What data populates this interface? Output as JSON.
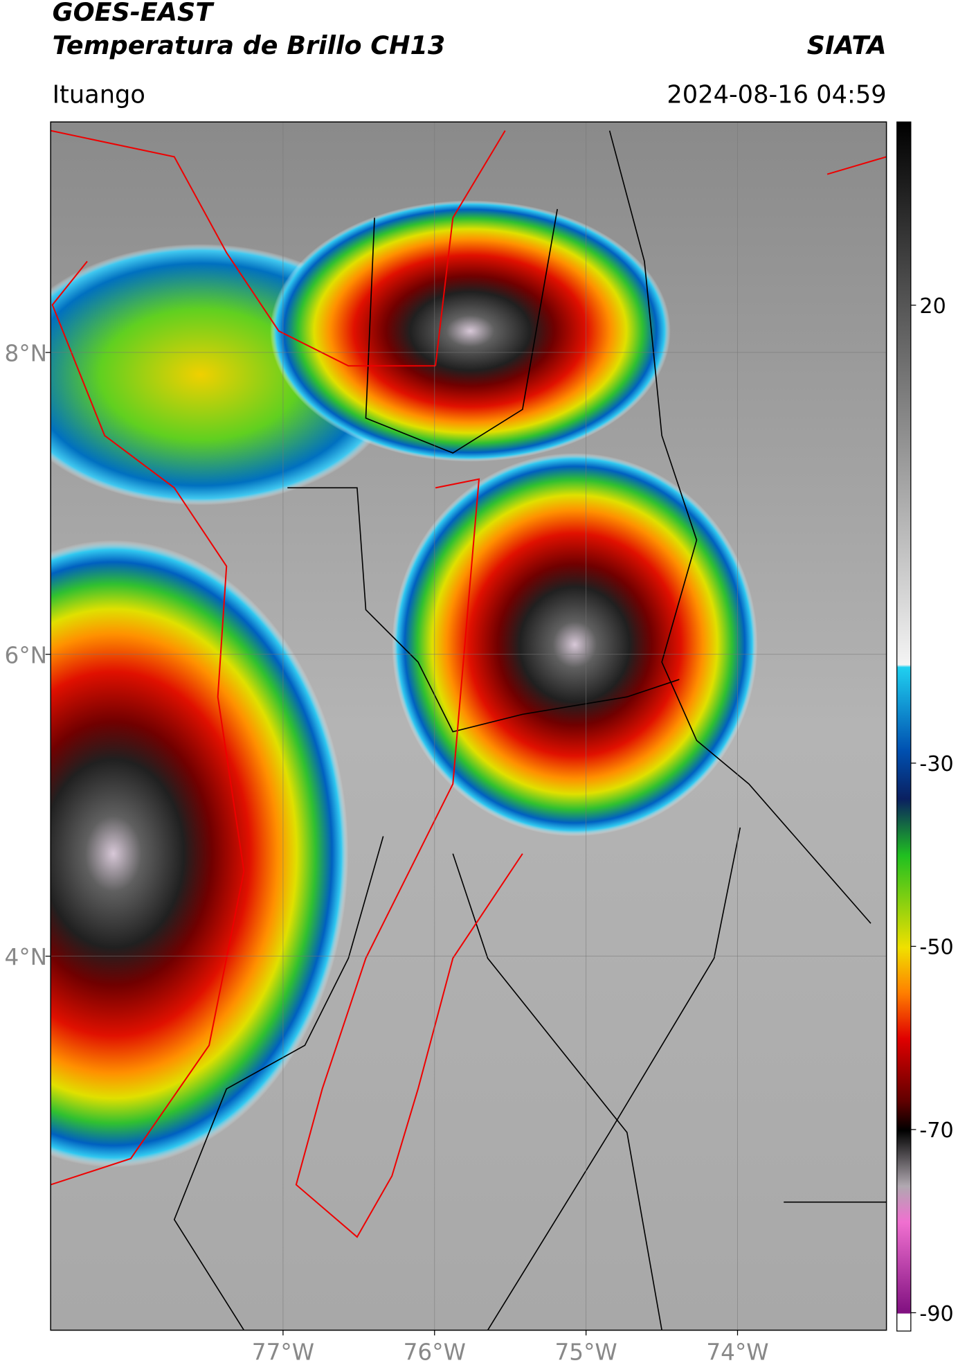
{
  "map": {
    "title": "GOES-EAST",
    "subtitle": "Temperatura de Brillo CH13",
    "source": "SIATA",
    "location": "Ituango",
    "datetime": "2024-08-16 04:59",
    "xlim": [
      -78.534,
      -73.017
    ],
    "ylim": [
      1.522,
      9.527
    ],
    "xticks": [
      {
        "value": -77,
        "label": "77°W"
      },
      {
        "value": -76,
        "label": "76°W"
      },
      {
        "value": -75,
        "label": "75°W"
      },
      {
        "value": -74,
        "label": "74°W"
      }
    ],
    "yticks": [
      {
        "value": 8,
        "label": "8°N"
      },
      {
        "value": 6,
        "label": "6°N"
      },
      {
        "value": 4,
        "label": "4°N"
      }
    ],
    "colorbar": {
      "lim": [
        -92,
        40
      ],
      "ticks": [
        20,
        -30,
        -50,
        -70,
        -90
      ]
    }
  }
}
